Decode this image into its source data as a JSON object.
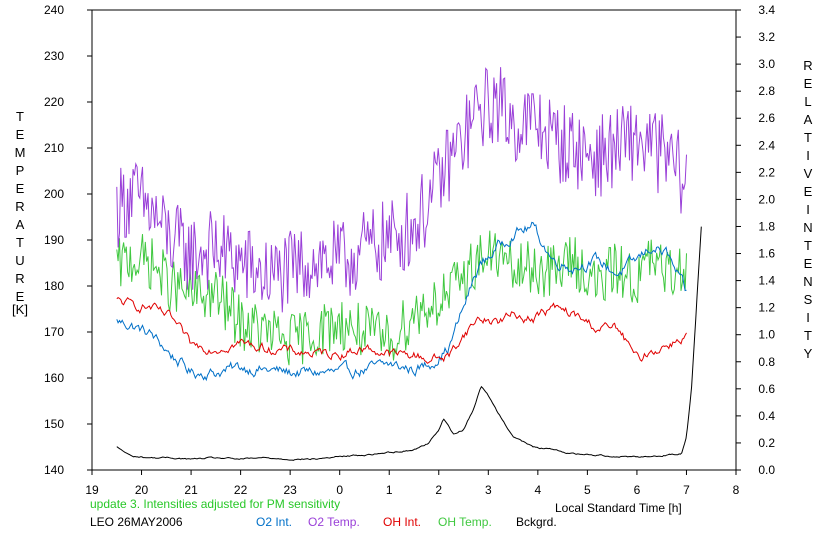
{
  "chart_data": {
    "type": "line",
    "x_range": [
      19,
      8
    ],
    "x_ticks": [
      "19",
      "20",
      "21",
      "22",
      "23",
      "0",
      "1",
      "2",
      "3",
      "4",
      "5",
      "6",
      "7",
      "8"
    ],
    "xlabel": "Local Standard Time [h]",
    "y_left": {
      "label_letters": [
        "T",
        "E",
        "M",
        "P",
        "E",
        "R",
        "A",
        "T",
        "U",
        "R",
        "E"
      ],
      "unit": "[K]",
      "range": [
        140,
        240
      ],
      "ticks": [
        "140",
        "150",
        "160",
        "170",
        "180",
        "190",
        "200",
        "210",
        "220",
        "230",
        "240"
      ]
    },
    "y_right": {
      "label_word1": [
        "R",
        "E",
        "L",
        "A",
        "T",
        "I",
        "V",
        "E"
      ],
      "label_word2": [
        "I",
        "N",
        "T",
        "E",
        "N",
        "S",
        "I",
        "T",
        "Y"
      ],
      "range": [
        0.0,
        3.4
      ],
      "ticks": [
        "0.0",
        "0.2",
        "0.4",
        "0.6",
        "0.8",
        "1.0",
        "1.2",
        "1.4",
        "1.6",
        "1.8",
        "2.0",
        "2.2",
        "2.4",
        "2.6",
        "2.8",
        "3.0",
        "3.2",
        "3.4"
      ]
    },
    "series": [
      {
        "name": "O2 Int.",
        "color": "#0070c8",
        "axis": "right",
        "noise": 0.06,
        "x": [
          19.5,
          19.8,
          20.2,
          20.6,
          21.0,
          21.5,
          22.0,
          22.5,
          23.0,
          23.5,
          0.0,
          0.5,
          1.0,
          1.5,
          1.8,
          2.2,
          2.5,
          2.8,
          3.2,
          3.5,
          3.9,
          4.3,
          4.7,
          5.2,
          5.6,
          6.0,
          6.3,
          6.6,
          7.0
        ],
        "y": [
          1.1,
          1.07,
          1.0,
          0.85,
          0.72,
          0.72,
          0.76,
          0.74,
          0.72,
          0.72,
          0.72,
          0.74,
          0.78,
          0.74,
          0.78,
          0.9,
          1.2,
          1.5,
          1.65,
          1.75,
          1.8,
          1.55,
          1.5,
          1.55,
          1.45,
          1.55,
          1.65,
          1.6,
          1.3
        ]
      },
      {
        "name": "O2 Temp.",
        "color": "#9a40d8",
        "axis": "left",
        "noise": 9,
        "x": [
          19.5,
          19.8,
          20.2,
          20.6,
          21.0,
          21.5,
          22.0,
          22.5,
          23.0,
          23.5,
          0.0,
          0.5,
          1.0,
          1.5,
          1.8,
          2.2,
          2.5,
          2.8,
          3.2,
          3.5,
          3.9,
          4.3,
          4.7,
          5.2,
          5.6,
          6.0,
          6.3,
          6.6,
          7.0
        ],
        "y": [
          197,
          200,
          196,
          190,
          187,
          188,
          185,
          182,
          183,
          186,
          185,
          188,
          190,
          193,
          198,
          207,
          212,
          218,
          220,
          215,
          216,
          212,
          210,
          208,
          210,
          212,
          210,
          208,
          203
        ]
      },
      {
        "name": "OH Int.",
        "color": "#e00000",
        "axis": "right",
        "noise": 0.05,
        "x": [
          19.5,
          19.8,
          20.2,
          20.6,
          21.0,
          21.5,
          22.0,
          22.5,
          23.0,
          23.5,
          0.0,
          0.5,
          1.0,
          1.5,
          1.8,
          2.2,
          2.5,
          2.8,
          3.2,
          3.5,
          3.9,
          4.3,
          4.7,
          5.2,
          5.6,
          6.0,
          6.3,
          6.6,
          7.0
        ],
        "y": [
          1.25,
          1.22,
          1.2,
          1.12,
          0.92,
          0.9,
          0.94,
          0.9,
          0.88,
          0.86,
          0.86,
          0.9,
          0.86,
          0.85,
          0.82,
          0.84,
          1.0,
          1.12,
          1.1,
          1.15,
          1.12,
          1.2,
          1.15,
          1.05,
          1.05,
          0.82,
          0.88,
          0.92,
          1.0
        ]
      },
      {
        "name": "OH Temp.",
        "color": "#40c840",
        "axis": "left",
        "noise": 6,
        "x": [
          19.5,
          19.8,
          20.2,
          20.6,
          21.0,
          21.5,
          22.0,
          22.5,
          23.0,
          23.5,
          0.0,
          0.5,
          1.0,
          1.5,
          1.8,
          2.2,
          2.5,
          2.8,
          3.2,
          3.5,
          3.9,
          4.3,
          4.7,
          5.2,
          5.6,
          6.0,
          6.3,
          6.6,
          7.0
        ],
        "y": [
          184,
          186,
          185,
          180,
          178,
          178,
          172,
          170,
          168,
          170,
          172,
          170,
          168,
          174,
          176,
          178,
          182,
          186,
          187,
          183,
          184,
          183,
          186,
          180,
          184,
          181,
          186,
          182,
          185
        ]
      },
      {
        "name": "Bckgrd.",
        "color": "#000000",
        "axis": "right",
        "noise": 0.008,
        "x": [
          19.5,
          19.8,
          20.2,
          20.6,
          21.0,
          21.5,
          22.0,
          22.5,
          23.0,
          23.5,
          0.0,
          0.5,
          1.0,
          1.5,
          1.8,
          2.0,
          2.1,
          2.2,
          2.3,
          2.5,
          2.7,
          2.85,
          3.0,
          3.2,
          3.5,
          3.9,
          4.3,
          4.7,
          5.2,
          5.6,
          6.0,
          6.3,
          6.6,
          6.9,
          7.0,
          7.1,
          7.2,
          7.3
        ],
        "y": [
          0.17,
          0.1,
          0.09,
          0.09,
          0.08,
          0.09,
          0.08,
          0.09,
          0.08,
          0.08,
          0.1,
          0.11,
          0.13,
          0.15,
          0.2,
          0.3,
          0.38,
          0.32,
          0.26,
          0.3,
          0.45,
          0.62,
          0.55,
          0.42,
          0.25,
          0.17,
          0.15,
          0.12,
          0.11,
          0.1,
          0.1,
          0.1,
          0.11,
          0.12,
          0.25,
          0.6,
          1.2,
          1.8
        ]
      }
    ],
    "annotations": {
      "update_note": "update 3. Intensities adjusted for PM sensitivity",
      "station_date": "LEO 26MAY2006"
    },
    "legend_placement": "bottom-right",
    "grid": false
  }
}
